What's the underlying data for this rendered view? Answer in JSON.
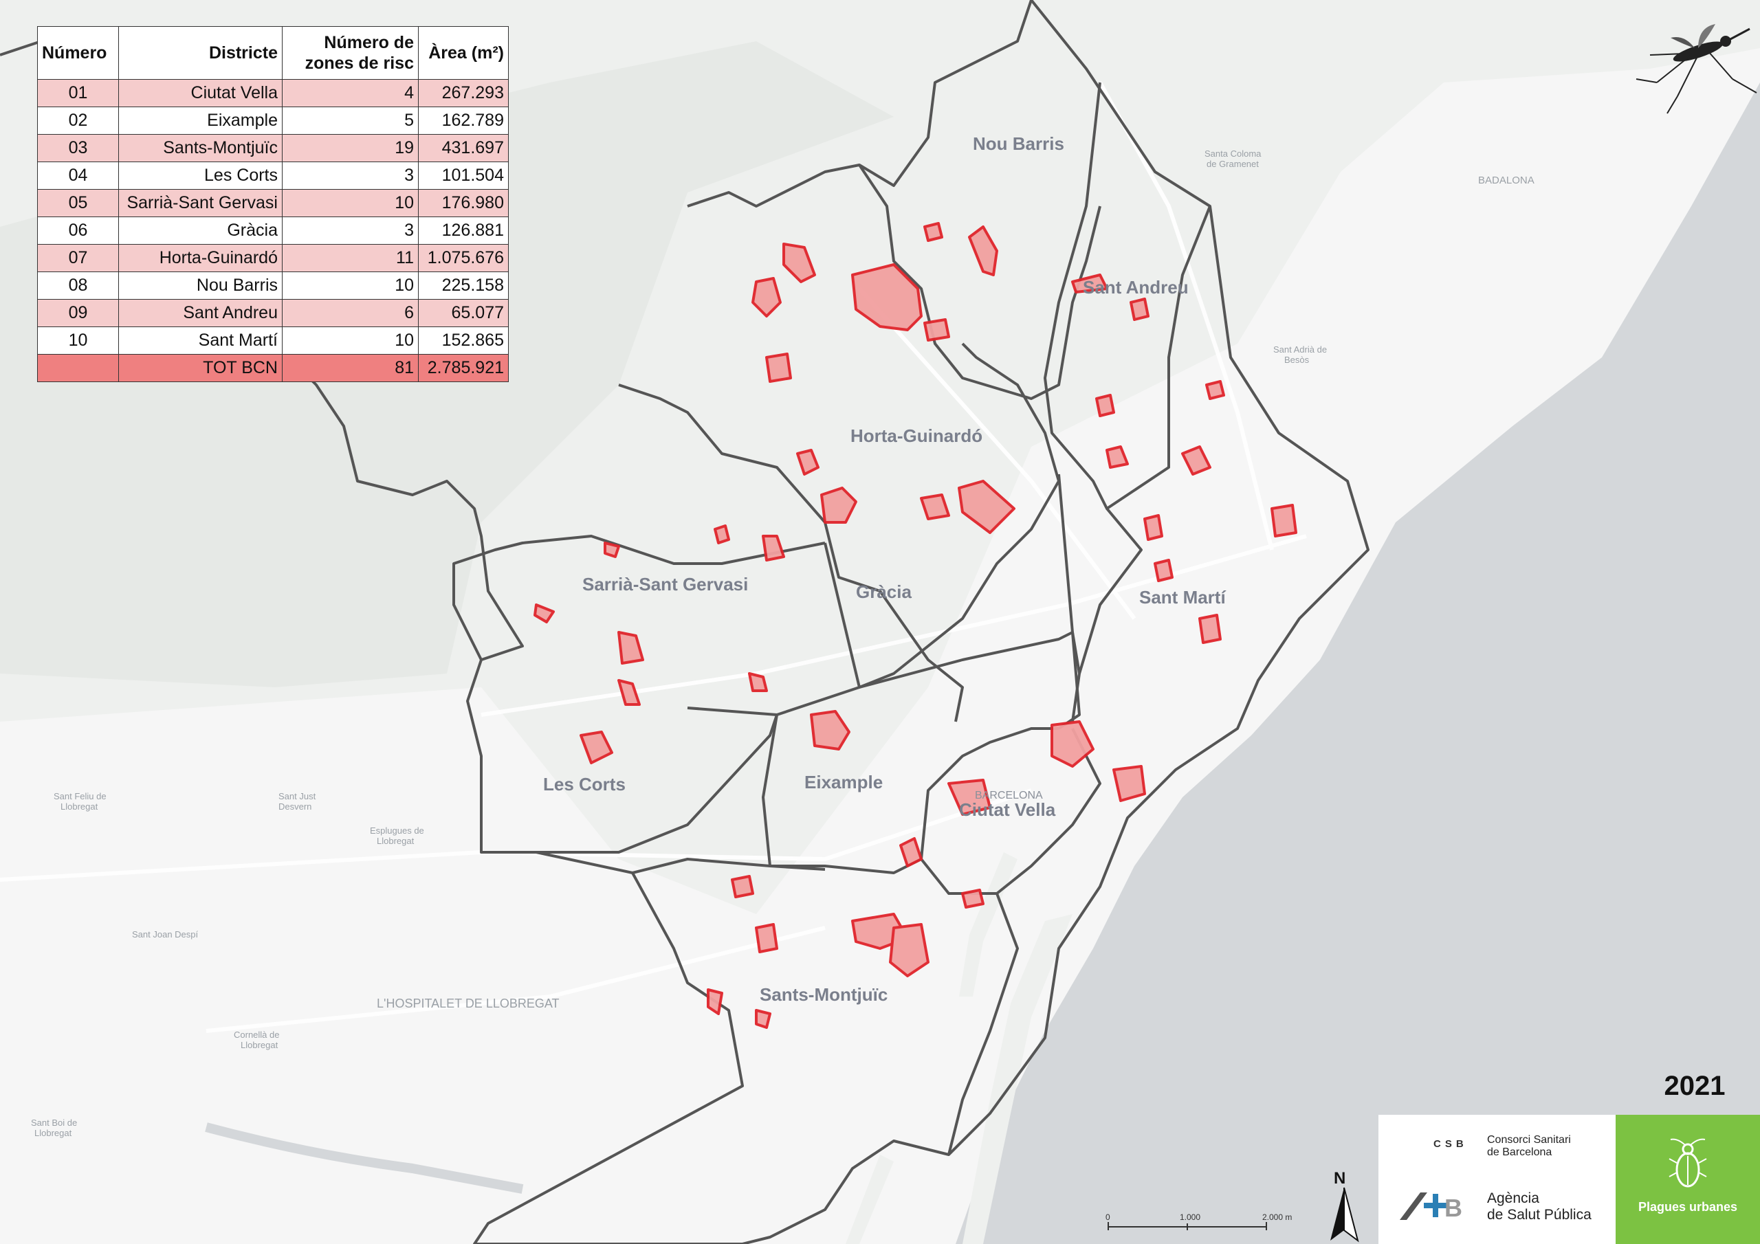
{
  "table": {
    "headers": {
      "numero": "Número",
      "districte": "Districte",
      "zones_line1": "Número de",
      "zones_line2": "zones de risc",
      "area": "Àrea (m²)"
    },
    "rows": [
      {
        "numero": "01",
        "districte": "Ciutat Vella",
        "zones": "4",
        "area": "267.293"
      },
      {
        "numero": "02",
        "districte": "Eixample",
        "zones": "5",
        "area": "162.789"
      },
      {
        "numero": "03",
        "districte": "Sants-Montjuïc",
        "zones": "19",
        "area": "431.697"
      },
      {
        "numero": "04",
        "districte": "Les Corts",
        "zones": "3",
        "area": "101.504"
      },
      {
        "numero": "05",
        "districte": "Sarrià-Sant Gervasi",
        "zones": "10",
        "area": "176.980"
      },
      {
        "numero": "06",
        "districte": "Gràcia",
        "zones": "3",
        "area": "126.881"
      },
      {
        "numero": "07",
        "districte": "Horta-Guinardó",
        "zones": "11",
        "area": "1.075.676"
      },
      {
        "numero": "08",
        "districte": "Nou Barris",
        "zones": "10",
        "area": "225.158"
      },
      {
        "numero": "09",
        "districte": "Sant Andreu",
        "zones": "6",
        "area": "65.077"
      },
      {
        "numero": "10",
        "districte": "Sant Martí",
        "zones": "10",
        "area": "152.865"
      }
    ],
    "total": {
      "label": "TOT BCN",
      "zones": "81",
      "area": "2.785.921"
    }
  },
  "map": {
    "district_labels": {
      "nou_barris": "Nou Barris",
      "sant_andreu": "Sant Andreu",
      "horta_guinardo": "Horta-Guinardó",
      "sarria": "Sarrià-Sant Gervasi",
      "gracia": "Gràcia",
      "sant_marti": "Sant Martí",
      "les_corts": "Les Corts",
      "eixample": "Eixample",
      "ciutat_vella": "Ciutat Vella",
      "barcelona": "BARCELONA",
      "sants_montjuic": "Sants-Montjuïc"
    },
    "places": {
      "badalona": "BADALONA",
      "santa_coloma_1": "Santa Coloma",
      "santa_coloma_2": "de Gramenet",
      "sant_adria_1": "Sant Adrià de",
      "sant_adria_2": "Besòs",
      "hospitalet": "L'HOSPITALET DE LLOBREGAT",
      "sant_feliu_1": "Sant Feliu de",
      "sant_feliu_2": "Llobregat",
      "sant_just_1": "Sant Just",
      "sant_just_2": "Desvern",
      "esplugues_1": "Esplugues de",
      "esplugues_2": "Llobregat",
      "sant_joan": "Sant Joan Despí",
      "cornella_1": "Cornellà de",
      "cornella_2": "Llobregat",
      "sant_boi_1": "Sant Boi de",
      "sant_boi_2": "Llobregat"
    },
    "scale": {
      "tick0": "0",
      "tick1": "1.000",
      "tick2": "2.000 m"
    },
    "north": "N",
    "colors": {
      "risk_fill": "#f2a0a0",
      "risk_stroke": "#e0242b",
      "district_border": "#555555",
      "sea": "#d4d7da",
      "land": "#eef0ee",
      "urban": "#f6f6f6"
    }
  },
  "footer": {
    "year": "2021",
    "csb_mark": "CSB",
    "csb_line1": "Consorci Sanitari",
    "csb_line2": "de Barcelona",
    "aspb_line1": "Agència",
    "aspb_line2": "de Salut Pública",
    "plagues": "Plagues urbanes"
  },
  "icons": {
    "mosquito": "mosquito-icon",
    "cockroach": "cockroach-icon",
    "north_arrow": "north-arrow-icon"
  }
}
